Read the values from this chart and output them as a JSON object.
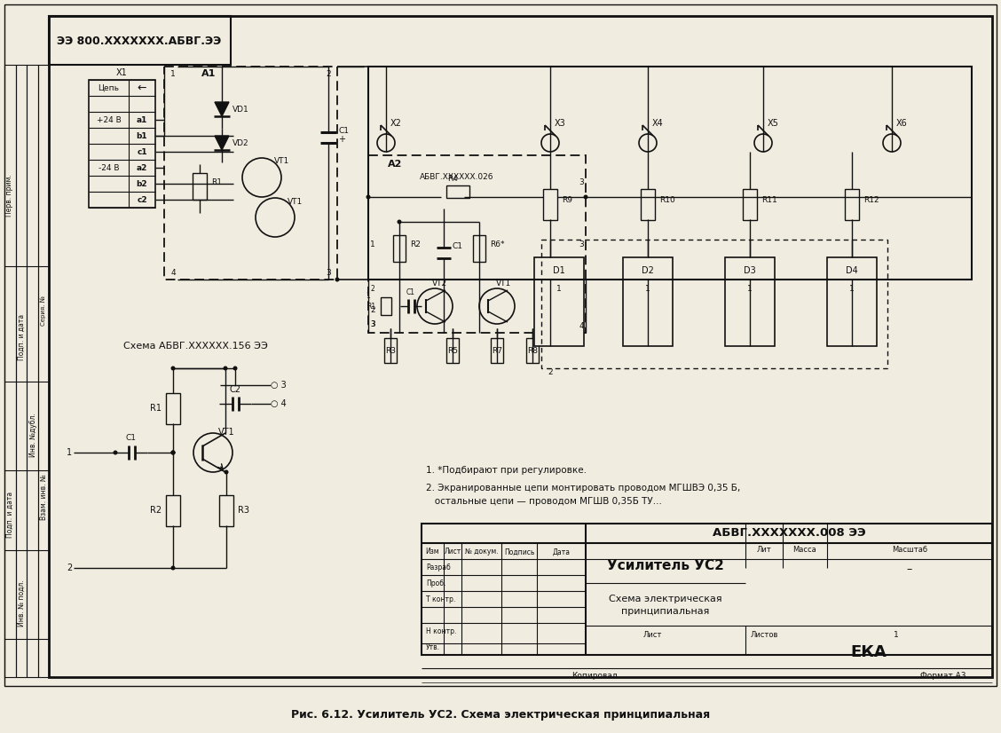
{
  "title_block_doc_num": "АБВГ.XXXXXXX.008 ЭЭ",
  "title_block_device": "Усилитель УС2",
  "title_block_schema": "Схема электрическая",
  "title_block_schema2": "принципиальная",
  "title_block_eka": "ЕКА",
  "title_block_lim": "Лит",
  "title_block_mass": "Масса",
  "title_block_scale": "Масштаб",
  "title_block_list": "Лист",
  "title_block_listov": "Листов",
  "title_block_listov_val": "1",
  "title_block_kopiroval": "Копировал",
  "title_block_format": "Формат А3",
  "title_block_izm": "Изм",
  "title_block_list2": "Лист",
  "title_block_ndok": "№ докум.",
  "title_block_podpis": "Подпись",
  "title_block_data": "Дата",
  "title_block_razrab": "Разраб",
  "title_block_prob": "Проб.",
  "title_block_tkontr": "Т контр.",
  "title_block_nkontr": "Н контр.",
  "title_block_utv": "Утв.",
  "stamp_text": "ЭЭ 800.XXXXXXX.АБВГ",
  "schema_ref": "Схема АБВГ.XXXXXX.156 ЭЭ",
  "note1": "1. *Подбирают при регулировке.",
  "note2": "2. Экранированные цепи монтировать проводом МГШВЭ 0,35 Б,",
  "note3": "   остальные цепи — проводом МГШВ 0,35Б ТУ...",
  "caption": "Рис. 6.12. Усилитель УС2. Схема электрическая принципиальная",
  "bg_color": "#f0ece0",
  "line_color": "#111111"
}
